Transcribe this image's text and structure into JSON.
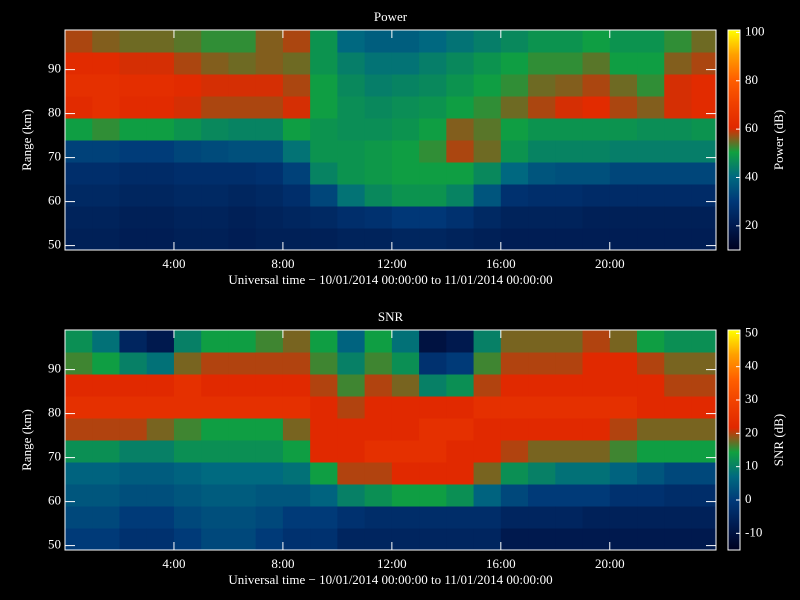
{
  "chart_data": [
    {
      "type": "heatmap",
      "title": "Power",
      "xlabel": "Universal time − 10/01/2014 00:00:00 to 11/01/2014 00:00:00",
      "ylabel": "Range (km)",
      "colorbar_label": "Power (dB)",
      "x_bins": [
        0,
        1,
        2,
        3,
        4,
        5,
        6,
        7,
        8,
        9,
        10,
        11,
        12,
        13,
        14,
        15,
        16,
        17,
        18,
        19,
        20,
        21,
        22,
        23,
        23.9
      ],
      "y_bins": [
        49,
        54,
        59,
        64,
        69,
        74,
        79,
        84,
        89,
        94,
        99
      ],
      "z": [
        [
          22,
          22,
          21,
          21,
          22,
          22,
          21,
          22,
          22,
          22,
          23,
          23,
          24,
          24,
          23,
          22,
          21,
          21,
          21,
          21,
          21,
          21,
          21,
          21
        ],
        [
          23,
          23,
          22,
          22,
          23,
          23,
          22,
          23,
          24,
          25,
          27,
          28,
          30,
          30,
          28,
          25,
          23,
          23,
          23,
          22,
          22,
          22,
          22,
          22
        ],
        [
          25,
          25,
          24,
          24,
          25,
          25,
          24,
          25,
          27,
          33,
          42,
          46,
          48,
          48,
          45,
          36,
          28,
          27,
          27,
          26,
          26,
          26,
          26,
          26
        ],
        [
          27,
          27,
          26,
          26,
          27,
          27,
          27,
          28,
          32,
          45,
          48,
          49,
          50,
          50,
          50,
          46,
          40,
          36,
          35,
          35,
          33,
          33,
          33,
          33
        ],
        [
          32,
          32,
          31,
          31,
          33,
          34,
          35,
          35,
          42,
          48,
          48,
          49,
          50,
          52,
          58,
          55,
          48,
          45,
          45,
          45,
          44,
          44,
          44,
          44
        ],
        [
          50,
          52,
          50,
          50,
          48,
          46,
          45,
          45,
          50,
          48,
          47,
          47,
          48,
          50,
          56,
          54,
          50,
          48,
          48,
          48,
          48,
          47,
          47,
          48
        ],
        [
          62,
          64,
          62,
          62,
          60,
          58,
          58,
          58,
          60,
          50,
          47,
          46,
          47,
          48,
          50,
          52,
          55,
          58,
          60,
          62,
          58,
          56,
          60,
          62
        ],
        [
          64,
          64,
          63,
          63,
          62,
          60,
          60,
          60,
          58,
          50,
          46,
          44,
          45,
          46,
          48,
          50,
          52,
          55,
          56,
          58,
          55,
          52,
          60,
          62
        ],
        [
          62,
          62,
          60,
          60,
          58,
          56,
          55,
          56,
          55,
          48,
          44,
          42,
          42,
          44,
          46,
          48,
          50,
          52,
          52,
          54,
          50,
          50,
          56,
          58
        ],
        [
          58,
          56,
          55,
          55,
          54,
          52,
          52,
          56,
          58,
          48,
          40,
          38,
          38,
          40,
          42,
          44,
          46,
          48,
          48,
          50,
          48,
          48,
          52,
          55
        ]
      ],
      "xlim": [
        0,
        23.9
      ],
      "ylim": [
        49,
        99
      ],
      "xticks": [
        {
          "value": 4,
          "label": "4:00"
        },
        {
          "value": 8,
          "label": "8:00"
        },
        {
          "value": 12,
          "label": "12:00"
        },
        {
          "value": 16,
          "label": "16:00"
        },
        {
          "value": 20,
          "label": "20:00"
        }
      ],
      "yticks": [
        50,
        60,
        70,
        80,
        90
      ],
      "clim": [
        10,
        101
      ],
      "cticks": [
        20,
        40,
        60,
        80,
        100
      ],
      "colormap": [
        "#000020",
        "#001a50",
        "#003878",
        "#006a80",
        "#10a040",
        "#e02800",
        "#f04000",
        "#ff6000",
        "#ffa000",
        "#ffff00"
      ]
    },
    {
      "type": "heatmap",
      "title": "SNR",
      "xlabel": "Universal time − 10/01/2014 00:00:00 to 11/01/2014 00:00:00",
      "ylabel": "Range (km)",
      "colorbar_label": "SNR (dB)",
      "x_bins": [
        0,
        1,
        2,
        3,
        4,
        5,
        6,
        7,
        8,
        9,
        10,
        11,
        12,
        13,
        14,
        15,
        16,
        17,
        18,
        19,
        20,
        21,
        22,
        23,
        23.9
      ],
      "y_bins": [
        49,
        54,
        59,
        64,
        69,
        74,
        79,
        84,
        89,
        94,
        99
      ],
      "z": [
        [
          0,
          0,
          -2,
          -2,
          0,
          2,
          2,
          0,
          -2,
          -2,
          -5,
          -5,
          -5,
          -5,
          -5,
          -5,
          -8,
          -8,
          -8,
          -8,
          -8,
          -8,
          -8,
          -8
        ],
        [
          2,
          2,
          0,
          0,
          2,
          3,
          3,
          2,
          0,
          0,
          -2,
          -3,
          -3,
          -3,
          -3,
          -3,
          -5,
          -5,
          -5,
          -6,
          -6,
          -6,
          -6,
          -6
        ],
        [
          4,
          4,
          3,
          3,
          4,
          5,
          5,
          4,
          4,
          6,
          10,
          12,
          14,
          14,
          12,
          6,
          2,
          0,
          0,
          0,
          -2,
          -2,
          -3,
          -3
        ],
        [
          6,
          6,
          5,
          5,
          6,
          7,
          7,
          7,
          8,
          14,
          20,
          20,
          22,
          22,
          22,
          18,
          12,
          10,
          8,
          8,
          6,
          4,
          2,
          2
        ],
        [
          12,
          12,
          10,
          10,
          12,
          12,
          12,
          12,
          14,
          22,
          22,
          24,
          24,
          24,
          22,
          22,
          20,
          18,
          18,
          18,
          16,
          14,
          14,
          14
        ],
        [
          20,
          20,
          20,
          18,
          16,
          14,
          14,
          14,
          18,
          22,
          22,
          22,
          22,
          24,
          24,
          22,
          22,
          22,
          22,
          22,
          20,
          18,
          18,
          18
        ],
        [
          24,
          24,
          24,
          24,
          24,
          24,
          24,
          24,
          24,
          22,
          20,
          22,
          22,
          22,
          22,
          24,
          24,
          24,
          24,
          24,
          24,
          22,
          22,
          22
        ],
        [
          22,
          22,
          22,
          22,
          24,
          22,
          22,
          22,
          22,
          20,
          16,
          20,
          18,
          10,
          12,
          20,
          22,
          22,
          22,
          22,
          22,
          22,
          20,
          20
        ],
        [
          16,
          14,
          10,
          8,
          18,
          20,
          20,
          20,
          20,
          16,
          10,
          16,
          12,
          -2,
          0,
          16,
          20,
          20,
          20,
          22,
          22,
          20,
          18,
          18
        ],
        [
          12,
          8,
          -5,
          -8,
          10,
          14,
          14,
          16,
          18,
          14,
          6,
          14,
          8,
          -10,
          -8,
          10,
          18,
          18,
          18,
          20,
          18,
          14,
          12,
          12
        ]
      ],
      "xlim": [
        0,
        23.9
      ],
      "ylim": [
        49,
        99
      ],
      "xticks": [
        {
          "value": 4,
          "label": "4:00"
        },
        {
          "value": 8,
          "label": "8:00"
        },
        {
          "value": 12,
          "label": "12:00"
        },
        {
          "value": 16,
          "label": "16:00"
        },
        {
          "value": 20,
          "label": "20:00"
        }
      ],
      "yticks": [
        50,
        60,
        70,
        80,
        90
      ],
      "clim": [
        -15,
        51
      ],
      "cticks": [
        -10,
        0,
        10,
        20,
        30,
        40,
        50
      ],
      "colormap": [
        "#000020",
        "#001a50",
        "#003878",
        "#006a80",
        "#10a040",
        "#e02800",
        "#f04000",
        "#ff6000",
        "#ffa000",
        "#ffff00"
      ]
    }
  ]
}
